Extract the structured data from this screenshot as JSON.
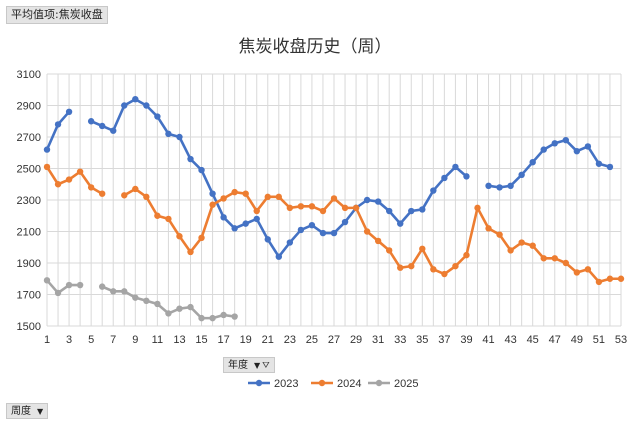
{
  "value_field": "平均值项:焦炭收盘",
  "week_field": "周度",
  "year_field": "年度",
  "chart_data": {
    "type": "line",
    "title": "焦炭收盘历史（周）",
    "xlabel": "",
    "ylabel": "",
    "ylim": [
      1500,
      3100
    ],
    "yticks": [
      1500,
      1700,
      1900,
      2100,
      2300,
      2500,
      2700,
      2900,
      3100
    ],
    "xlim": [
      1,
      53
    ],
    "xticks": [
      1,
      3,
      5,
      7,
      9,
      11,
      13,
      15,
      17,
      19,
      21,
      23,
      25,
      27,
      29,
      31,
      33,
      35,
      37,
      39,
      41,
      43,
      45,
      47,
      49,
      51,
      53
    ],
    "grid": true,
    "legend_position": "bottom",
    "series": [
      {
        "name": "2023",
        "color": "#4472c4",
        "values": [
          2620,
          2780,
          2860,
          null,
          2800,
          2770,
          2740,
          2900,
          2940,
          2900,
          2830,
          2720,
          2700,
          2560,
          2490,
          2340,
          2190,
          2120,
          2150,
          2180,
          2050,
          1940,
          2030,
          2110,
          2140,
          2090,
          2090,
          2160,
          2250,
          2300,
          2290,
          2230,
          2150,
          2230,
          2240,
          2360,
          2440,
          2510,
          2450,
          null,
          2390,
          2380,
          2390,
          2460,
          2540,
          2620,
          2660,
          2680,
          2610,
          2640,
          2530,
          2510,
          null
        ]
      },
      {
        "name": "2024",
        "color": "#ed7d31",
        "values": [
          2510,
          2400,
          2430,
          2480,
          2380,
          2340,
          null,
          2330,
          2370,
          2320,
          2200,
          2180,
          2070,
          1970,
          2060,
          2270,
          2310,
          2350,
          2340,
          2230,
          2320,
          2320,
          2250,
          2260,
          2260,
          2230,
          2310,
          2250,
          2250,
          2100,
          2040,
          1980,
          1870,
          1880,
          1990,
          1860,
          1830,
          1880,
          1950,
          2250,
          2120,
          2080,
          1980,
          2030,
          2010,
          1930,
          1930,
          1900,
          1840,
          1860,
          1780,
          1800,
          1800
        ]
      },
      {
        "name": "2025",
        "color": "#a5a5a5",
        "values": [
          1790,
          1710,
          1760,
          1760,
          null,
          1750,
          1720,
          1720,
          1680,
          1660,
          1640,
          1580,
          1610,
          1620,
          1550,
          1550,
          1570,
          1560
        ]
      }
    ]
  }
}
